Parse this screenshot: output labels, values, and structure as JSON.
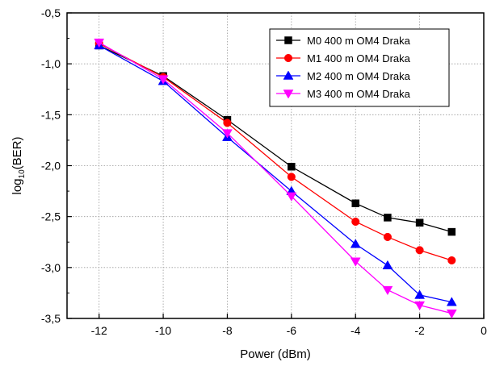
{
  "chart_data": {
    "type": "line",
    "xlabel": "Power (dBm)",
    "ylabel_main": "log",
    "ylabel_sub": "10",
    "ylabel_rest": "(BER)",
    "xlim": [
      -13,
      0
    ],
    "ylim": [
      -3.5,
      -0.5
    ],
    "xticks": [
      -12,
      -10,
      -8,
      -6,
      -4,
      -2,
      0
    ],
    "xtick_labels": [
      "-12",
      "-10",
      "-8",
      "-6",
      "-4",
      "-2",
      "0"
    ],
    "yticks": [
      -3.5,
      -3.0,
      -2.5,
      -2.0,
      -1.5,
      -1.0,
      -0.5
    ],
    "ytick_labels": [
      "-3,5",
      "-3,0",
      "-2,5",
      "-2,0",
      "-1,5",
      "-1,0",
      "-0,5"
    ],
    "grid": true,
    "legend_position": "top-right",
    "series": [
      {
        "name": "M0 400 m OM4 Draka",
        "color": "#000000",
        "marker": "square",
        "x": [
          -12,
          -10,
          -8,
          -6,
          -4,
          -3,
          -2,
          -1
        ],
        "y": [
          -0.82,
          -1.12,
          -1.55,
          -2.01,
          -2.37,
          -2.51,
          -2.56,
          -2.65
        ]
      },
      {
        "name": "M1 400 m OM4 Draka",
        "color": "#ff0000",
        "marker": "circle",
        "x": [
          -12,
          -10,
          -8,
          -6,
          -4,
          -3,
          -2,
          -1
        ],
        "y": [
          -0.8,
          -1.13,
          -1.58,
          -2.11,
          -2.55,
          -2.7,
          -2.83,
          -2.93
        ]
      },
      {
        "name": "M2 400 m OM4 Draka",
        "color": "#0000ff",
        "marker": "triangle-up",
        "x": [
          -12,
          -10,
          -8,
          -6,
          -4,
          -3,
          -2,
          -1
        ],
        "y": [
          -0.82,
          -1.17,
          -1.72,
          -2.25,
          -2.77,
          -2.98,
          -3.27,
          -3.34
        ]
      },
      {
        "name": "M3 400 m OM4 Draka",
        "color": "#ff00ff",
        "marker": "triangle-down",
        "x": [
          -12,
          -10,
          -8,
          -6,
          -4,
          -3,
          -2,
          -1
        ],
        "y": [
          -0.79,
          -1.15,
          -1.68,
          -2.3,
          -2.94,
          -3.22,
          -3.37,
          -3.45
        ]
      }
    ]
  }
}
